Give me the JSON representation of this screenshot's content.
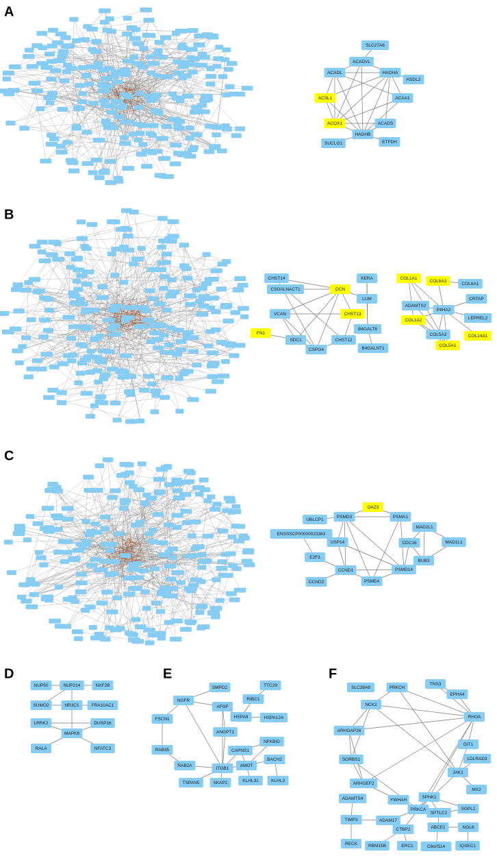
{
  "colors": {
    "node": "#87ccf3",
    "highlight": "#ffff00",
    "edge": "#777777",
    "hairball_edge": "#8a8a8a",
    "hairball_core": "#a0522d"
  },
  "panels": [
    {
      "label": "A",
      "network": {
        "nodes": [
          {
            "label": "SLC27A6"
          },
          {
            "label": "ACADVL"
          },
          {
            "label": "ACADL"
          },
          {
            "label": "HADHA"
          },
          {
            "label": "HSDL2"
          },
          {
            "label": "ACSL1",
            "highlighted": true
          },
          {
            "label": "ACAA1"
          },
          {
            "label": "ACOX1",
            "highlighted": true
          },
          {
            "label": "ACADS"
          },
          {
            "label": "HADHB"
          },
          {
            "label": "SUCLG1"
          },
          {
            "label": "ETFDH"
          }
        ]
      }
    },
    {
      "label": "B",
      "network": {
        "nodes": [
          {
            "label": "CHST14"
          },
          {
            "label": "CSGALNACT1"
          },
          {
            "label": "DCN",
            "highlighted": true
          },
          {
            "label": "KERA"
          },
          {
            "label": "LUM"
          },
          {
            "label": "VCAN"
          },
          {
            "label": "CHST13",
            "highlighted": true
          },
          {
            "label": "B4GALT6"
          },
          {
            "label": "FN1",
            "highlighted": true
          },
          {
            "label": "SDC1"
          },
          {
            "label": "CHST12"
          },
          {
            "label": "B4GALNT1"
          },
          {
            "label": "CSPG4"
          },
          {
            "label": "COL1A1",
            "highlighted": true
          },
          {
            "label": "COL6A3",
            "highlighted": true
          },
          {
            "label": "COL6A1"
          },
          {
            "label": "ADAMTS2"
          },
          {
            "label": "CRTAP"
          },
          {
            "label": "P4HA2"
          },
          {
            "label": "LEPREL2"
          },
          {
            "label": "COL1A2",
            "highlighted": true
          },
          {
            "label": "COL5A2"
          },
          {
            "label": "COL14A1",
            "highlighted": true
          },
          {
            "label": "COL5A1",
            "highlighted": true
          }
        ]
      }
    },
    {
      "label": "C",
      "network": {
        "nodes": [
          {
            "label": "OAZ3",
            "highlighted": true
          },
          {
            "label": "UBLCP1"
          },
          {
            "label": "PSMD3"
          },
          {
            "label": "PSMA1"
          },
          {
            "label": "ENSSSCP00000023383"
          },
          {
            "label": "MAD2L1"
          },
          {
            "label": "USP14"
          },
          {
            "label": "CDC16"
          },
          {
            "label": "MAD1L1"
          },
          {
            "label": "E2F3"
          },
          {
            "label": "BUB3"
          },
          {
            "label": "CCND1"
          },
          {
            "label": "PSMD14"
          },
          {
            "label": "CCND2"
          },
          {
            "label": "PSME4"
          }
        ]
      }
    },
    {
      "label": "D",
      "network": {
        "nodes": [
          {
            "label": "NUP50"
          },
          {
            "label": "NUP214"
          },
          {
            "label": "NXF2B"
          },
          {
            "label": "SUMO2"
          },
          {
            "label": "NR3C1"
          },
          {
            "label": "FRA10AC1"
          },
          {
            "label": "LRRK2"
          },
          {
            "label": "DUSP16"
          },
          {
            "label": "MAPK8"
          },
          {
            "label": "RALA"
          },
          {
            "label": "NFATC3"
          }
        ]
      }
    },
    {
      "label": "E",
      "network": {
        "nodes": [
          {
            "label": "SMPD2"
          },
          {
            "label": "TTC29"
          },
          {
            "label": "NGFR"
          },
          {
            "label": "AFGF"
          },
          {
            "label": "RIBC1"
          },
          {
            "label": "FSCN1"
          },
          {
            "label": "HSPA9"
          },
          {
            "label": "HSPA12A"
          },
          {
            "label": "ANGPT1"
          },
          {
            "label": "RAB35"
          },
          {
            "label": "CAPNS1"
          },
          {
            "label": "NFKBID"
          },
          {
            "label": "RAB2A"
          },
          {
            "label": "ITGB1"
          },
          {
            "label": "AMOT"
          },
          {
            "label": "BACH2"
          },
          {
            "label": "TSPAN5"
          },
          {
            "label": "SKAP2"
          },
          {
            "label": "KLHL31"
          },
          {
            "label": "KLHL3"
          }
        ]
      }
    },
    {
      "label": "F",
      "network": {
        "nodes": [
          {
            "label": "SLC38A8"
          },
          {
            "label": "PRKCH"
          },
          {
            "label": "TNS3"
          },
          {
            "label": "EPHA4"
          },
          {
            "label": "NCK2"
          },
          {
            "label": "RHOA"
          },
          {
            "label": "ARHGAP26"
          },
          {
            "label": "GIT1"
          },
          {
            "label": "LDLRAD3"
          },
          {
            "label": "SORBS1"
          },
          {
            "label": "JAK1"
          },
          {
            "label": "MX2"
          },
          {
            "label": "ARHGEF2"
          },
          {
            "label": "SPHK1"
          },
          {
            "label": "YWHAH"
          },
          {
            "label": "ADAMTS4"
          },
          {
            "label": "SGPL1"
          },
          {
            "label": "PRKCA"
          },
          {
            "label": "SPTLC2"
          },
          {
            "label": "TIMP3"
          },
          {
            "label": "ADAM17"
          },
          {
            "label": "ABCE1"
          },
          {
            "label": "NOL6"
          },
          {
            "label": "CTBP2"
          },
          {
            "label": "RECK"
          },
          {
            "label": "RBM15B"
          },
          {
            "label": "ERC1"
          },
          {
            "label": "C8orf114"
          },
          {
            "label": "IQSEC1"
          }
        ]
      }
    }
  ]
}
